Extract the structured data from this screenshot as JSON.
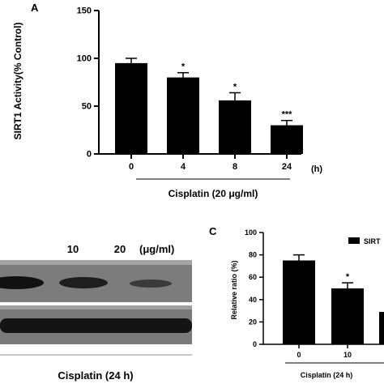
{
  "chart_data": [
    {
      "panel": "A",
      "type": "bar",
      "ylabel": "SIRT1 Activity(% Control)",
      "ylim": [
        0,
        150
      ],
      "yticks": [
        0,
        50,
        100,
        150
      ],
      "categories": [
        "0",
        "4",
        "8",
        "24"
      ],
      "x_unit": "(h)",
      "values": [
        95,
        80,
        56,
        30
      ],
      "errors": [
        5,
        5,
        8,
        5
      ],
      "significance": [
        "",
        "*",
        "*",
        "***"
      ],
      "group_label": "Cisplatin (20 μg/ml)",
      "bar_color": "#000000"
    },
    {
      "panel": "C",
      "type": "bar",
      "ylabel": "Relative ratio (%)",
      "ylim": [
        0,
        100
      ],
      "yticks": [
        0,
        20,
        40,
        60,
        80,
        100
      ],
      "categories": [
        "0",
        "10"
      ],
      "values": [
        75,
        50
      ],
      "errors": [
        5,
        5
      ],
      "significance": [
        "",
        "*"
      ],
      "legend": [
        "SIRT"
      ],
      "group_label": "Cisplatin (24 h)",
      "bar_color": "#000000"
    }
  ],
  "blot": {
    "lane_labels": [
      "10",
      "20"
    ],
    "unit": "(μg/ml)",
    "group_label": "Cisplatin (24 h)"
  }
}
